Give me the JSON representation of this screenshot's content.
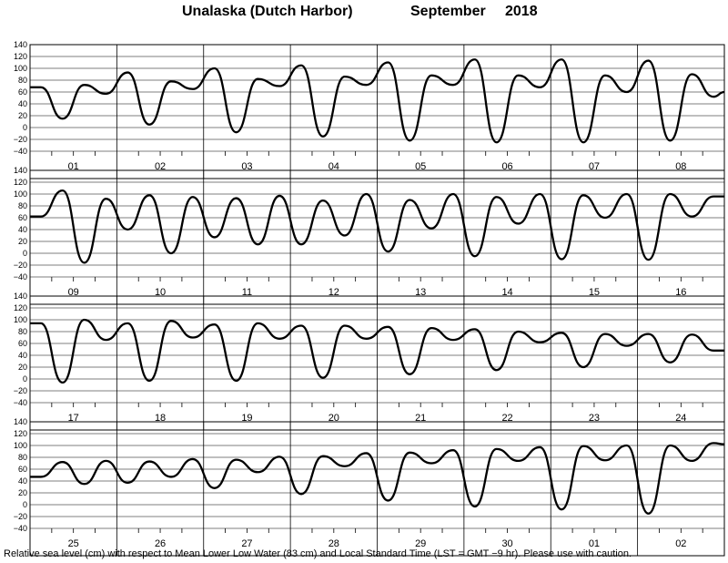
{
  "title": {
    "location": "Unalaska (Dutch Harbor)",
    "month": "September",
    "year": "2018"
  },
  "footnote": "Relative sea level (cm) with respect to Mean Lower Low Water (83 cm) and Local Standard Time (LST = GMT −9 hr). Please use with caution.",
  "chart_data": {
    "type": "line",
    "ylim": [
      -40,
      140
    ],
    "ytick_labels": [
      "140",
      "120",
      "100",
      "80",
      "60",
      "40",
      "20",
      "0",
      "−20",
      "−40"
    ],
    "grid": true,
    "panels": [
      {
        "days": [
          "01",
          "02",
          "03",
          "04",
          "05",
          "06",
          "07",
          "08"
        ],
        "x": [
          "01 00",
          "01 12",
          "02 00",
          "02 12",
          "03 00",
          "03 12",
          "04 00",
          "04 12",
          "05 00",
          "05 12",
          "06 00",
          "06 12",
          "07 00",
          "07 12",
          "08 00",
          "08 12"
        ],
        "extrema": [
          68,
          15,
          72,
          57,
          93,
          5,
          78,
          65,
          100,
          -8,
          82,
          70,
          105,
          -15,
          86,
          72,
          110,
          -22,
          88,
          72,
          115,
          -25,
          88,
          68,
          115,
          -25,
          88,
          60,
          113,
          -22,
          90,
          52
        ],
        "end": 60
      },
      {
        "days": [
          "09",
          "10",
          "11",
          "12",
          "13",
          "14",
          "15",
          "16"
        ],
        "x": [
          "09 00",
          "09 12",
          "10 00",
          "10 12",
          "11 00",
          "11 12",
          "12 00",
          "12 12",
          "13 00",
          "13 12",
          "14 00",
          "14 12",
          "15 00",
          "15 12",
          "16 00",
          "16 12"
        ],
        "extrema": [
          62,
          106,
          -16,
          92,
          40,
          98,
          0,
          95,
          27,
          93,
          15,
          97,
          15,
          89,
          30,
          100,
          3,
          90,
          42,
          100,
          -5,
          95,
          50,
          100,
          -10,
          98,
          60,
          100,
          -11,
          100,
          62,
          96
        ],
        "end": 96
      },
      {
        "days": [
          "17",
          "18",
          "19",
          "20",
          "21",
          "22",
          "23",
          "24"
        ],
        "x": [
          "17 00",
          "17 12",
          "18 00",
          "18 12",
          "19 00",
          "19 12",
          "20 00",
          "20 12",
          "21 00",
          "21 12",
          "22 00",
          "22 12",
          "23 00",
          "23 12",
          "24 00",
          "24 12"
        ],
        "extrema": [
          94,
          -6,
          100,
          66,
          94,
          -3,
          98,
          70,
          92,
          -3,
          94,
          68,
          90,
          2,
          90,
          68,
          88,
          8,
          86,
          66,
          84,
          15,
          80,
          62,
          78,
          20,
          76,
          56,
          76,
          28,
          75,
          48
        ],
        "end": 48
      },
      {
        "days": [
          "25",
          "26",
          "27",
          "28",
          "29",
          "30",
          "01",
          "02"
        ],
        "x": [
          "25 00",
          "25 12",
          "26 00",
          "26 12",
          "27 00",
          "27 12",
          "28 00",
          "28 12",
          "29 00",
          "29 12",
          "30 00",
          "30 12",
          "01 00",
          "01 12",
          "02 00",
          "02 12"
        ],
        "extrema": [
          47,
          72,
          35,
          74,
          37,
          73,
          47,
          77,
          28,
          76,
          55,
          81,
          18,
          82,
          65,
          87,
          7,
          88,
          70,
          92,
          -3,
          94,
          74,
          97,
          -8,
          99,
          75,
          100,
          -15,
          100,
          74,
          104
        ],
        "end": 102
      }
    ]
  }
}
